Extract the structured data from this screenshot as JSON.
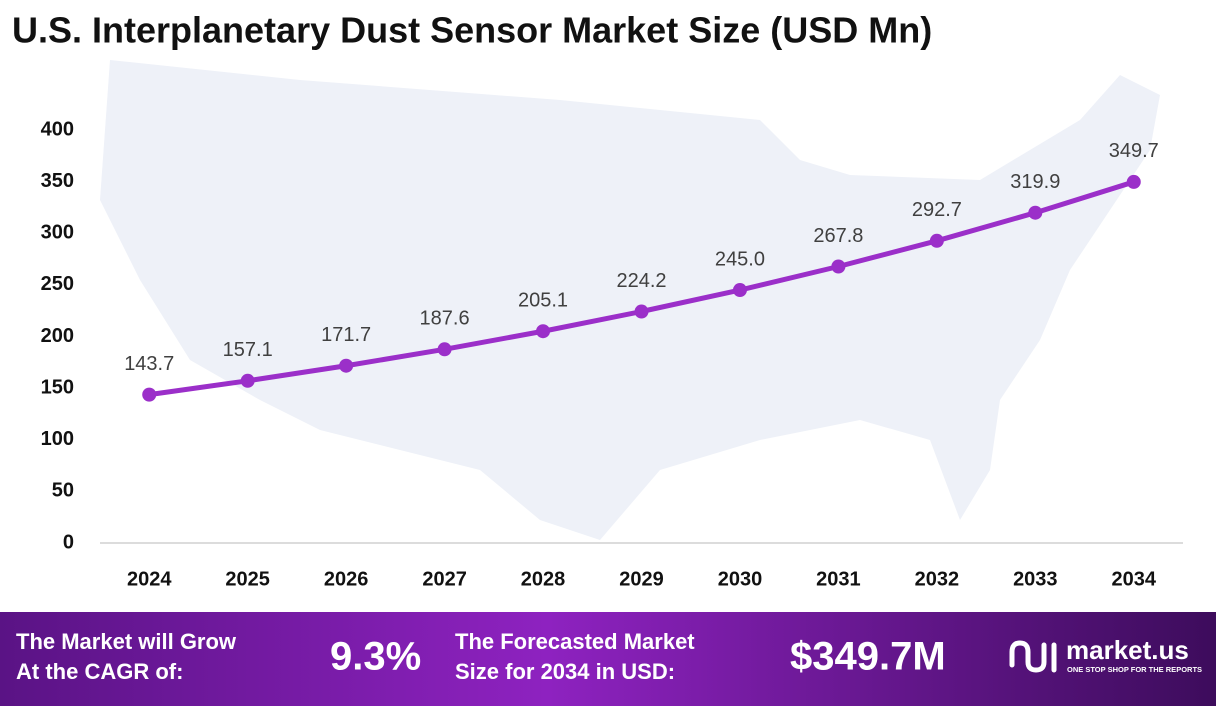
{
  "chart_data": {
    "type": "line",
    "title": "U.S. Interplanetary Dust Sensor Market Size (USD Mn)",
    "categories": [
      "2024",
      "2025",
      "2026",
      "2027",
      "2028",
      "2029",
      "2030",
      "2031",
      "2032",
      "2033",
      "2034"
    ],
    "values": [
      143.7,
      157.1,
      171.7,
      187.6,
      205.1,
      224.2,
      245.0,
      267.8,
      292.7,
      319.9,
      349.7
    ],
    "value_labels": [
      "143.7",
      "157.1",
      "171.7",
      "187.6",
      "205.1",
      "224.2",
      "245.0",
      "267.8",
      "292.7",
      "319.9",
      "349.7"
    ],
    "color": "#9b2fc9",
    "ylim": [
      0,
      400
    ],
    "yticks": [
      0,
      50,
      100,
      150,
      200,
      250,
      300,
      350,
      400
    ],
    "grid": false
  },
  "footer": {
    "cagr_label": [
      "The Market will Grow",
      "At the CAGR of:"
    ],
    "cagr_value": "9.3%",
    "forecast_label": [
      "The Forecasted Market",
      "Size for 2034 in USD:"
    ],
    "forecast_value": "$349.7M",
    "brand": "market.us",
    "tagline": "ONE STOP SHOP FOR THE REPORTS"
  }
}
